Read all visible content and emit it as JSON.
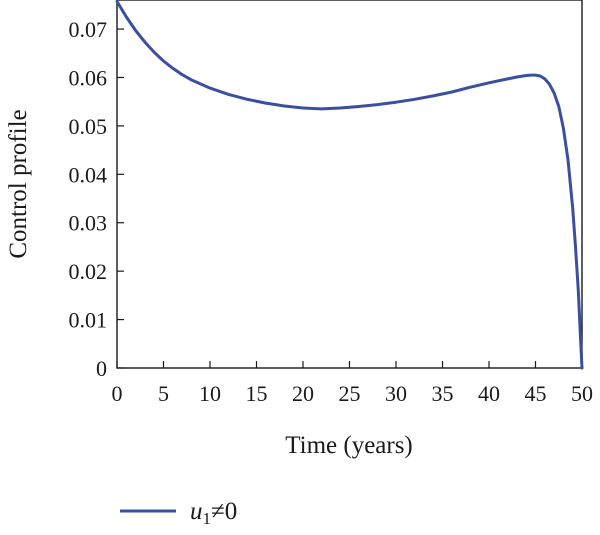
{
  "chart_data": {
    "type": "line",
    "title": "",
    "xlabel": "Time (years)",
    "ylabel": "Control profile",
    "xlim": [
      0,
      50
    ],
    "ylim": [
      0,
      0.076
    ],
    "xticks": [
      "0",
      "5",
      "10",
      "15",
      "20",
      "25",
      "30",
      "35",
      "40",
      "45",
      "50"
    ],
    "yticks": [
      "0",
      "0.01",
      "0.02",
      "0.03",
      "0.04",
      "0.05",
      "0.06",
      "0.07"
    ],
    "grid": false,
    "legend_placement": "bottom-center",
    "series": [
      {
        "name": "u1≠0",
        "legend": {
          "symbol": "u",
          "subscript": "1",
          "rest": "≠0"
        },
        "color": "#3a4fa0",
        "x": [
          0,
          1,
          2,
          3,
          4,
          5,
          6,
          7,
          8,
          10,
          12,
          14,
          16,
          18,
          20,
          22,
          24,
          26,
          28,
          30,
          32,
          34,
          36,
          38,
          40,
          42,
          43,
          44,
          44.5,
          45,
          45.5,
          46,
          46.5,
          47,
          47.5,
          48,
          48.5,
          49,
          49.3,
          49.6,
          49.8,
          50
        ],
        "y": [
          0.0757,
          0.0725,
          0.0697,
          0.0673,
          0.0652,
          0.0634,
          0.0619,
          0.0606,
          0.0595,
          0.0578,
          0.0565,
          0.0555,
          0.0547,
          0.0541,
          0.0537,
          0.0535,
          0.0537,
          0.054,
          0.0544,
          0.0549,
          0.0555,
          0.0562,
          0.057,
          0.058,
          0.0589,
          0.0597,
          0.0601,
          0.0604,
          0.0605,
          0.0605,
          0.0603,
          0.0597,
          0.0586,
          0.0568,
          0.054,
          0.0495,
          0.043,
          0.033,
          0.025,
          0.016,
          0.008,
          0.0
        ]
      }
    ]
  }
}
